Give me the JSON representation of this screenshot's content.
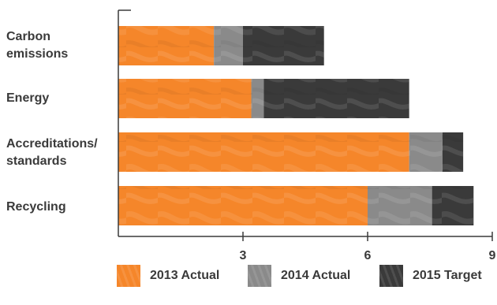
{
  "chart_data": {
    "type": "bar",
    "orientation": "horizontal",
    "stacked": true,
    "categories": [
      "Carbon\nemissions",
      "Energy",
      "Accreditations/\nstandards",
      "Recycling"
    ],
    "series": [
      {
        "name": "2013 Actual",
        "values": [
          2.3,
          3.2,
          7.0,
          6.0
        ],
        "color": "#f5862a"
      },
      {
        "name": "2014 Actual",
        "values": [
          0.7,
          0.3,
          0.8,
          1.55
        ],
        "color": "#8a8a8a"
      },
      {
        "name": "2015 Target",
        "values": [
          1.95,
          3.5,
          0.5,
          1.0
        ],
        "color": "#3a3a3a"
      }
    ],
    "xlim": [
      0,
      9
    ],
    "xticks": [
      3,
      6,
      9
    ],
    "grid": false,
    "legend": "bottom",
    "title": "",
    "xlabel": "",
    "ylabel": ""
  }
}
